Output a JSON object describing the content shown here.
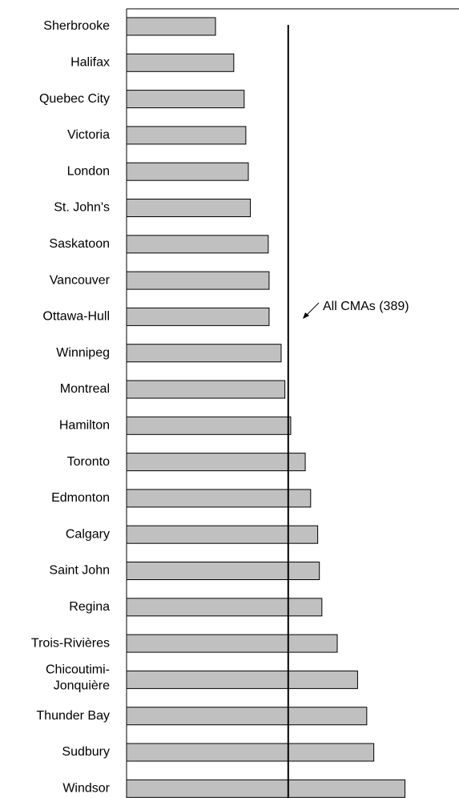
{
  "chart_data": {
    "type": "bar",
    "orientation": "horizontal",
    "categories": [
      "Sherbrooke",
      "Halifax",
      "Quebec City",
      "Victoria",
      "London",
      "St. John's",
      "Saskatoon",
      "Vancouver",
      "Ottawa-Hull",
      "Winnipeg",
      "Montreal",
      "Hamilton",
      "Toronto",
      "Edmonton",
      "Calgary",
      "Saint John",
      "Regina",
      "Trois-Rivières",
      "Chicoutimi-\nJonquière",
      "Thunder Bay",
      "Sudbury",
      "Windsor"
    ],
    "values": [
      214,
      258,
      283,
      287,
      293,
      298,
      341,
      343,
      343,
      372,
      381,
      395,
      430,
      443,
      460,
      464,
      470,
      507,
      556,
      578,
      595,
      670
    ],
    "color": "#c0c0c0",
    "xlim": [
      0,
      800
    ],
    "reference": {
      "value": 389,
      "label": "All CMAs (389)"
    }
  }
}
